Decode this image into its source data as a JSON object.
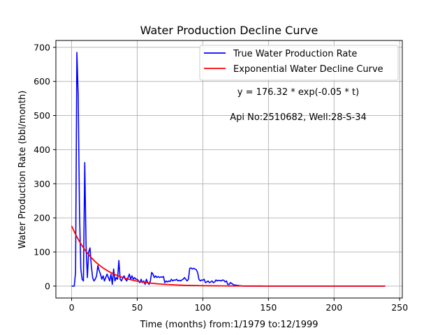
{
  "chart_data": {
    "type": "line",
    "title": "Water Production Decline Curve",
    "xlabel": "Time (months) from:1/1979 to:12/1999",
    "ylabel": "Water Production Rate (bbl/month)",
    "xlim": [
      -12,
      252
    ],
    "ylim": [
      -35,
      720
    ],
    "xticks": [
      0,
      50,
      100,
      150,
      200,
      250
    ],
    "yticks": [
      0,
      100,
      200,
      300,
      400,
      500,
      600,
      700
    ],
    "grid": true,
    "legend_position": "top-right",
    "annotations": [
      "y = 176.32 * exp(-0.05 * t)",
      "Api No:2510682, Well:28-S-34"
    ],
    "colors": {
      "true_rate": "#0000ff",
      "decline_curve": "#ff0000",
      "grid": "#b0b0b0"
    },
    "series": [
      {
        "name": "True Water Production Rate",
        "color": "#0000ff",
        "x": [
          0,
          1,
          2,
          3,
          4,
          5,
          6,
          7,
          8,
          9,
          10,
          11,
          12,
          13,
          14,
          15,
          16,
          17,
          18,
          19,
          20,
          21,
          22,
          23,
          24,
          25,
          26,
          27,
          28,
          29,
          30,
          31,
          32,
          33,
          34,
          35,
          36,
          37,
          38,
          39,
          40,
          41,
          42,
          43,
          44,
          45,
          46,
          47,
          48,
          49,
          50,
          51,
          52,
          53,
          54,
          55,
          56,
          57,
          58,
          59,
          60,
          61,
          62,
          63,
          64,
          65,
          66,
          67,
          68,
          69,
          70,
          71,
          72,
          73,
          74,
          75,
          76,
          77,
          78,
          79,
          80,
          81,
          82,
          83,
          84,
          85,
          86,
          87,
          88,
          89,
          90,
          91,
          92,
          93,
          94,
          95,
          96,
          97,
          98,
          99,
          100,
          101,
          102,
          103,
          104,
          105,
          106,
          107,
          108,
          109,
          110,
          111,
          112,
          113,
          114,
          115,
          116,
          117,
          118,
          119,
          120,
          121,
          122,
          123,
          124,
          125,
          126,
          127,
          128,
          129,
          130,
          135,
          140,
          150,
          160,
          170,
          180,
          190,
          200,
          210,
          220,
          230,
          239
        ],
        "y": [
          0,
          0,
          0,
          40,
          685,
          560,
          220,
          50,
          20,
          15,
          362,
          120,
          25,
          100,
          112,
          60,
          25,
          15,
          20,
          30,
          60,
          45,
          35,
          20,
          30,
          15,
          25,
          35,
          25,
          15,
          35,
          5,
          50,
          15,
          25,
          20,
          75,
          20,
          15,
          25,
          30,
          20,
          15,
          25,
          35,
          20,
          30,
          20,
          25,
          20,
          20,
          15,
          10,
          20,
          10,
          15,
          5,
          20,
          10,
          5,
          15,
          40,
          35,
          25,
          30,
          25,
          28,
          25,
          27,
          26,
          28,
          10,
          15,
          12,
          15,
          13,
          20,
          15,
          18,
          17,
          20,
          15,
          17,
          15,
          18,
          20,
          25,
          20,
          15,
          20,
          52,
          53,
          50,
          52,
          50,
          48,
          40,
          20,
          15,
          18,
          17,
          20,
          10,
          12,
          15,
          10,
          12,
          15,
          10,
          12,
          18,
          15,
          17,
          16,
          15,
          18,
          17,
          12,
          15,
          5,
          5,
          10,
          8,
          5,
          3,
          3,
          2,
          2,
          1,
          1,
          0,
          0,
          0,
          0,
          0,
          0,
          0,
          0,
          0,
          0,
          0,
          0,
          0
        ]
      },
      {
        "name": "Exponential Water Decline Curve",
        "color": "#ff0000",
        "model": {
          "a": 176.32,
          "b": -0.05,
          "t_start": 0,
          "t_end": 239
        }
      }
    ]
  }
}
